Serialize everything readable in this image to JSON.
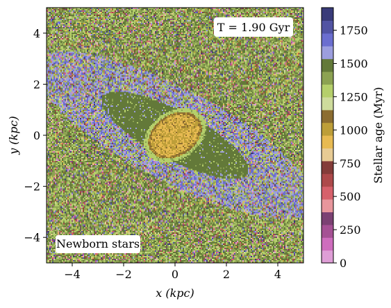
{
  "chart_data": {
    "type": "heatmap",
    "title": "",
    "xlabel": "x (kpc)",
    "ylabel": "y (kpc)",
    "xlim": [
      -5,
      5
    ],
    "ylim": [
      -5,
      5
    ],
    "x_ticks": [
      -4,
      -2,
      0,
      2,
      4
    ],
    "y_ticks": [
      -4,
      -2,
      0,
      2,
      4
    ],
    "x_tick_labels": [
      "−4",
      "−2",
      "0",
      "2",
      "4"
    ],
    "y_tick_labels": [
      "−4",
      "−2",
      "0",
      "2",
      "4"
    ],
    "grid": false,
    "annotations": {
      "time": "T = 1.90 Gyr",
      "population": "Newborn stars"
    },
    "colorbar": {
      "label": "Stellar age (Myr)",
      "range": [
        0,
        1920
      ],
      "ticks": [
        0,
        250,
        500,
        750,
        1000,
        1250,
        1500,
        1750
      ],
      "tick_labels": [
        "0",
        "250",
        "500",
        "750",
        "1000",
        "1250",
        "1500",
        "1750"
      ],
      "colormap": "tab20b",
      "colors": [
        "#de9ed6",
        "#ce6dbd",
        "#a55194",
        "#7b4173",
        "#e7969c",
        "#d6616b",
        "#ad494a",
        "#843c39",
        "#e7cb94",
        "#e7ba52",
        "#bd9e39",
        "#8c6d31",
        "#cedb9c",
        "#b5cf6b",
        "#8ca252",
        "#637939",
        "#9c9ede",
        "#6b6ecf",
        "#5254a3",
        "#393b79"
      ]
    },
    "structure": {
      "bar_angle_deg": -28,
      "core_ellipse_kpc": {
        "a": 1.0,
        "b": 0.72,
        "angle_deg": 33
      },
      "core_age_myr": 950,
      "bar_age_myr": 1500,
      "arm_age_myr": 1600
    }
  }
}
